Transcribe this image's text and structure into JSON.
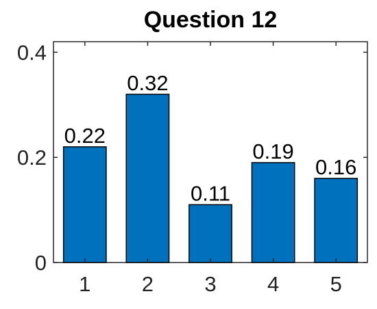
{
  "chart_data": {
    "type": "bar",
    "title": "Question 12",
    "xlabel": "",
    "ylabel": "",
    "categories": [
      "1",
      "2",
      "3",
      "4",
      "5"
    ],
    "values": [
      0.22,
      0.32,
      0.11,
      0.19,
      0.16
    ],
    "data_labels": [
      "0.22",
      "0.32",
      "0.11",
      "0.19",
      "0.16"
    ],
    "ylim": [
      0,
      0.42
    ],
    "yticks": [
      0,
      0.2,
      0.4
    ],
    "ytick_labels": [
      "0",
      "0.2",
      "0.4"
    ],
    "grid": false,
    "legend": "none",
    "bar_color": "#0072BD",
    "edge_color": "#000000"
  }
}
